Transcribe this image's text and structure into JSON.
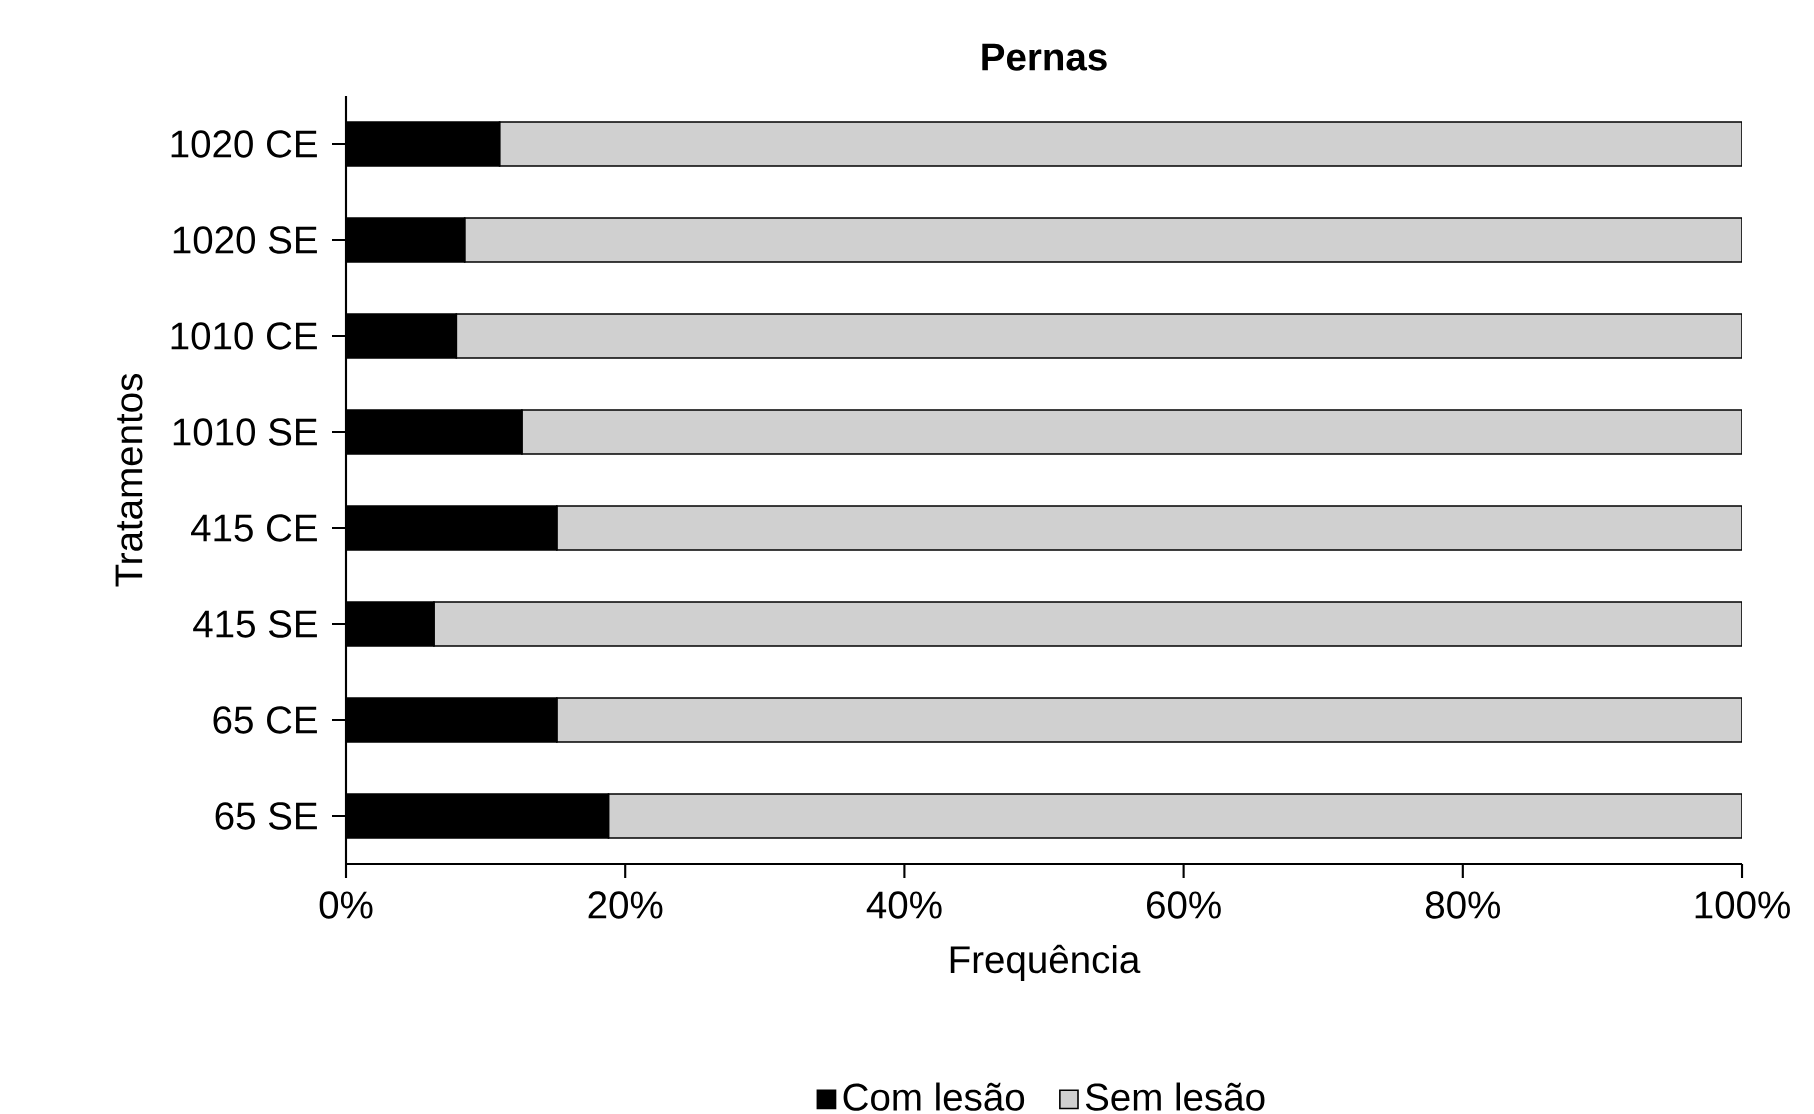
{
  "chart_data": {
    "type": "bar",
    "orientation": "horizontal",
    "stacked": true,
    "title": "Pernas",
    "xlabel": "Frequência",
    "ylabel": "Tratamentos",
    "categories": [
      "1020 CE",
      "1020 SE",
      "1010 CE",
      "1010 SE",
      "415 CE",
      "415 SE",
      "65 CE",
      "65 SE"
    ],
    "series": [
      {
        "name": "Com lesão",
        "color": "#000000",
        "values": [
          11.0,
          8.5,
          7.9,
          12.6,
          15.1,
          6.3,
          15.1,
          18.8
        ]
      },
      {
        "name": "Sem lesão",
        "color": "#d0d0d0",
        "values": [
          89.0,
          91.5,
          92.1,
          87.4,
          84.9,
          93.7,
          84.9,
          81.2
        ]
      }
    ],
    "xlim": [
      0,
      100
    ],
    "xticks": [
      {
        "value": 0,
        "label": "0%"
      },
      {
        "value": 20,
        "label": "20%"
      },
      {
        "value": 40,
        "label": "40%"
      },
      {
        "value": 60,
        "label": "60%"
      },
      {
        "value": 80,
        "label": "80%"
      },
      {
        "value": 100,
        "label": "100%"
      }
    ],
    "legend": "bottom"
  }
}
